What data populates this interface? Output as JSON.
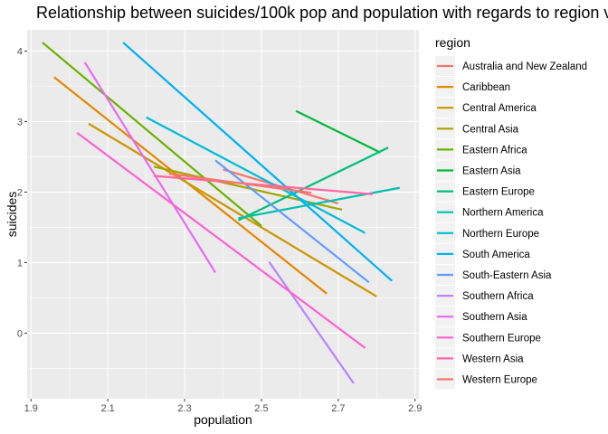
{
  "chart_data": {
    "type": "line",
    "title": "Relationship between suicides/100k pop and population with regards to region v",
    "xlabel": "population",
    "ylabel": "suicides",
    "xlim": [
      1.89,
      2.91
    ],
    "ylim": [
      -0.93,
      4.3
    ],
    "x_ticks": [
      "1.9",
      "2.1",
      "2.3",
      "2.5",
      "2.7",
      "2.9"
    ],
    "y_ticks": [
      "0",
      "1",
      "2",
      "3",
      "4"
    ],
    "grid": true,
    "legend": {
      "title": "region",
      "position": "right"
    },
    "series": [
      {
        "name": "Australia and New Zealand",
        "color": "#F8766D",
        "points": [
          [
            2.4,
            2.32
          ],
          [
            2.7,
            1.84
          ]
        ]
      },
      {
        "name": "Caribbean",
        "color": "#E58700",
        "points": [
          [
            1.96,
            3.63
          ],
          [
            2.67,
            0.56
          ]
        ]
      },
      {
        "name": "Central America",
        "color": "#C99800",
        "points": [
          [
            2.05,
            2.97
          ],
          [
            2.8,
            0.52
          ]
        ]
      },
      {
        "name": "Central Asia",
        "color": "#A3A500",
        "points": [
          [
            2.22,
            2.36
          ],
          [
            2.71,
            1.75
          ]
        ]
      },
      {
        "name": "Eastern Africa",
        "color": "#6BB100",
        "points": [
          [
            1.93,
            4.12
          ],
          [
            2.5,
            1.52
          ]
        ]
      },
      {
        "name": "Eastern Asia",
        "color": "#00BA38",
        "points": [
          [
            2.59,
            3.15
          ],
          [
            2.81,
            2.56
          ]
        ]
      },
      {
        "name": "Eastern Europe",
        "color": "#00BF7D",
        "points": [
          [
            2.44,
            1.6
          ],
          [
            2.83,
            2.63
          ]
        ]
      },
      {
        "name": "Northern America",
        "color": "#00C0AF",
        "points": [
          [
            2.44,
            1.63
          ],
          [
            2.86,
            2.06
          ]
        ]
      },
      {
        "name": "Northern Europe",
        "color": "#00BCD8",
        "points": [
          [
            2.2,
            3.06
          ],
          [
            2.77,
            1.42
          ]
        ]
      },
      {
        "name": "South America",
        "color": "#00B0F6",
        "points": [
          [
            2.14,
            4.12
          ],
          [
            2.84,
            0.74
          ]
        ]
      },
      {
        "name": "South-Eastern Asia",
        "color": "#619CFF",
        "points": [
          [
            2.38,
            2.45
          ],
          [
            2.78,
            0.72
          ]
        ]
      },
      {
        "name": "Southern Africa",
        "color": "#B983FF",
        "points": [
          [
            2.52,
            1.01
          ],
          [
            2.74,
            -0.71
          ]
        ]
      },
      {
        "name": "Southern Asia",
        "color": "#E76BF3",
        "points": [
          [
            2.04,
            3.84
          ],
          [
            2.38,
            0.86
          ]
        ]
      },
      {
        "name": "Southern Europe",
        "color": "#FD61D1",
        "points": [
          [
            2.02,
            2.84
          ],
          [
            2.77,
            -0.21
          ]
        ]
      },
      {
        "name": "Western Asia",
        "color": "#FF67A4",
        "points": [
          [
            2.22,
            2.23
          ],
          [
            2.79,
            1.97
          ]
        ]
      },
      {
        "name": "Western Europe",
        "color": "#F8766D",
        "points": [
          [
            2.26,
            2.26
          ],
          [
            2.63,
            1.99
          ]
        ]
      }
    ]
  }
}
